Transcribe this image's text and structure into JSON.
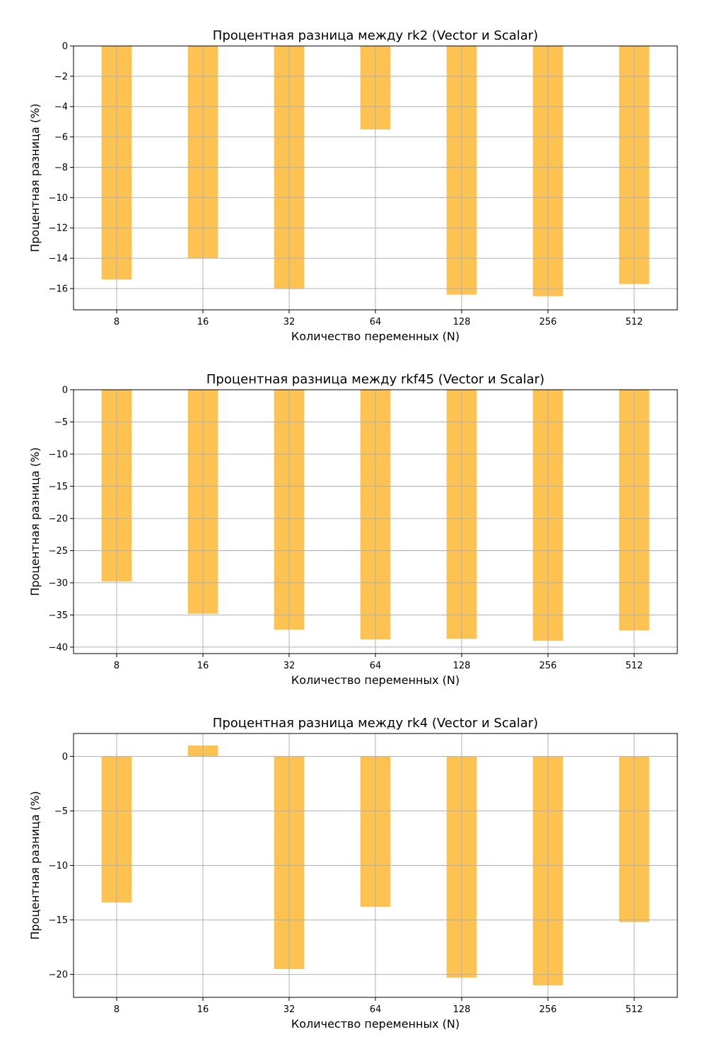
{
  "chart_data": [
    {
      "type": "bar",
      "title": "Процентная разница между rk2 (Vector и Scalar)",
      "xlabel": "Количество переменных (N)",
      "ylabel": "Процентная разница (%)",
      "categories": [
        "8",
        "16",
        "32",
        "64",
        "128",
        "256",
        "512"
      ],
      "values": [
        -15.4,
        -14.0,
        -16.0,
        -5.5,
        -16.4,
        -16.5,
        -15.7
      ],
      "ylim": [
        -17.4,
        0
      ],
      "yticks": [
        0,
        -2,
        -4,
        -6,
        -8,
        -10,
        -12,
        -14,
        -16
      ],
      "grid": true,
      "bar_color": "#fcbf49"
    },
    {
      "type": "bar",
      "title": "Процентная разница между rkf45 (Vector и Scalar)",
      "xlabel": "Количество переменных (N)",
      "ylabel": "Процентная разница (%)",
      "categories": [
        "8",
        "16",
        "32",
        "64",
        "128",
        "256",
        "512"
      ],
      "values": [
        -29.8,
        -34.8,
        -37.3,
        -38.8,
        -38.7,
        -39.0,
        -37.4
      ],
      "ylim": [
        -41,
        0
      ],
      "yticks": [
        0,
        -5,
        -10,
        -15,
        -20,
        -25,
        -30,
        -35,
        -40
      ],
      "grid": true,
      "bar_color": "#fcbf49"
    },
    {
      "type": "bar",
      "title": "Процентная разница между rk4 (Vector и Scalar)",
      "xlabel": "Количество переменных (N)",
      "ylabel": "Процентная разница (%)",
      "categories": [
        "8",
        "16",
        "32",
        "64",
        "128",
        "256",
        "512"
      ],
      "values": [
        -13.4,
        1.0,
        -19.5,
        -13.8,
        -20.3,
        -21.0,
        -15.2
      ],
      "ylim": [
        -22.1,
        2.1
      ],
      "yticks": [
        0,
        -5,
        -10,
        -15,
        -20
      ],
      "grid": true,
      "bar_color": "#fcbf49"
    }
  ]
}
